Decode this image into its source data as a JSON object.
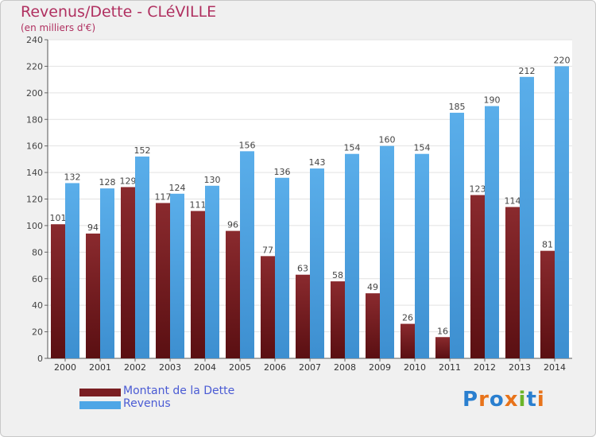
{
  "header": {
    "title": "Revenus/Dette - CLéVILLE",
    "subtitle": "(en milliers d'€)"
  },
  "logo": {
    "text": "Proxiti",
    "letters": [
      "P",
      "r",
      "o",
      "x",
      "i",
      "t",
      "i"
    ]
  },
  "colors": {
    "debt": "#7a1e22",
    "revenue": "#4ea6e6",
    "title": "#b03060",
    "logo": [
      "#2a7fcf",
      "#e8731a",
      "#2a7fcf",
      "#e8731a",
      "#6bb52a",
      "#2a7fcf",
      "#e8731a"
    ]
  },
  "chart_data": {
    "type": "bar",
    "categories": [
      "2000",
      "2001",
      "2002",
      "2003",
      "2004",
      "2005",
      "2006",
      "2007",
      "2008",
      "2009",
      "2010",
      "2011",
      "2012",
      "2013",
      "2014"
    ],
    "series": [
      {
        "name": "Montant de la Dette",
        "values": [
          101,
          94,
          129,
          117,
          111,
          96,
          77,
          63,
          58,
          49,
          26,
          16,
          123,
          114,
          81
        ]
      },
      {
        "name": "Revenus",
        "values": [
          132,
          128,
          152,
          124,
          130,
          156,
          136,
          143,
          154,
          160,
          154,
          185,
          190,
          212,
          220
        ]
      }
    ],
    "ylim": [
      0,
      240
    ],
    "yticks": [
      0,
      20,
      40,
      60,
      80,
      100,
      120,
      140,
      160,
      180,
      200,
      220,
      240
    ],
    "grid": true,
    "legend_position": "bottom-left"
  }
}
